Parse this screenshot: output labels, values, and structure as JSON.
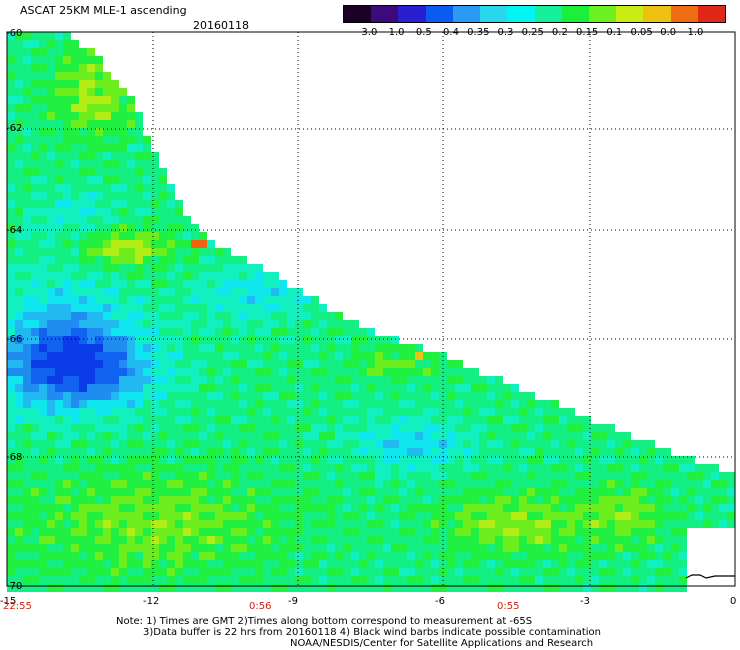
{
  "header": {
    "title": "ASCAT 25KM MLE-1 ascending",
    "date": "20160118"
  },
  "colorbar": {
    "labels": [
      "-3.0",
      "-1.0",
      "-0.5",
      "-0.4",
      "-0.35",
      "-0.3",
      "-0.25",
      "-0.2",
      "-0.15",
      "-0.1",
      "-0.05",
      "0.0",
      "1.0"
    ],
    "colors": [
      "#1a0026",
      "#3d0a7a",
      "#2a1fd0",
      "#0a5cf0",
      "#2b9af2",
      "#28d8ec",
      "#00f6f0",
      "#14ef9c",
      "#1af03c",
      "#6cf020",
      "#c8ec14",
      "#f0c010",
      "#f06c10",
      "#e02818"
    ]
  },
  "map": {
    "lat_labels": [
      "-60",
      "-62",
      "-64",
      "-66",
      "-68",
      "-70"
    ],
    "lon_labels": [
      "-15",
      "-12",
      "-9",
      "-6",
      "-3",
      "0"
    ],
    "time_labels": [
      "22:55",
      "0:56",
      "0:55"
    ]
  },
  "notes": {
    "line1": "Note: 1) Times are GMT 2)Times along bottom correspond to measurement at -65S",
    "line2": "3)Data buffer is 22 hrs from 20160118 4) Black wind barbs indicate possible contamination",
    "line3": "NOAA/NESDIS/Center for Satellite Applications and Research"
  }
}
